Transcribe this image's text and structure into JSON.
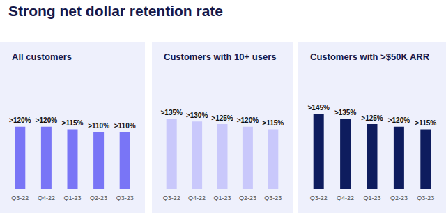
{
  "title": "Strong net dollar retention rate",
  "chart_data": [
    {
      "type": "bar",
      "title": "All customers",
      "categories": [
        "Q3-22",
        "Q4-22",
        "Q1-23",
        "Q2-23",
        "Q3-23"
      ],
      "values": [
        120,
        120,
        115,
        110,
        110
      ],
      "value_labels": [
        ">120%",
        ">120%",
        ">115%",
        ">110%",
        ">110%"
      ],
      "color": "#7975f6",
      "ylim": [
        0,
        230
      ],
      "data_labels": true,
      "tick_labels": "x",
      "grid": false
    },
    {
      "type": "bar",
      "title": "Customers with 10+ users",
      "categories": [
        "Q3-22",
        "Q4-22",
        "Q1-23",
        "Q2-23",
        "Q3-23"
      ],
      "values": [
        135,
        130,
        125,
        120,
        115
      ],
      "value_labels": [
        ">135%",
        ">130%",
        ">125%",
        ">120%",
        ">115%"
      ],
      "color": "#c9c8fb",
      "ylim": [
        0,
        230
      ],
      "data_labels": true,
      "tick_labels": "x",
      "grid": false
    },
    {
      "type": "bar",
      "title": "Customers with >$50K ARR",
      "categories": [
        "Q3-22",
        "Q4-22",
        "Q1-23",
        "Q2-23",
        "Q3-23"
      ],
      "values": [
        145,
        135,
        125,
        120,
        115
      ],
      "value_labels": [
        ">145%",
        ">135%",
        ">125%",
        ">120%",
        ">115%"
      ],
      "color": "#0e1c5e",
      "ylim": [
        0,
        230
      ],
      "data_labels": true,
      "tick_labels": "x",
      "grid": false
    }
  ]
}
